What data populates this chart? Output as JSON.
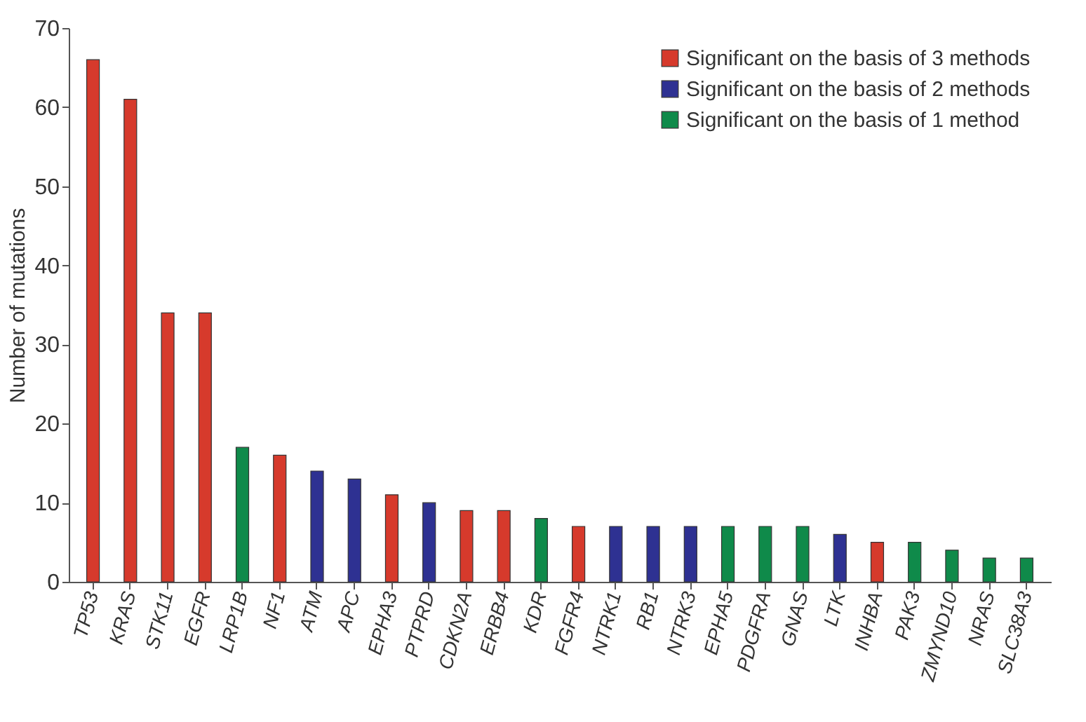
{
  "chart_data": {
    "type": "bar",
    "ylabel": "Number of mutations",
    "categories": [
      "TP53",
      "KRAS",
      "STK11",
      "EGFR",
      "LRP1B",
      "NF1",
      "ATM",
      "APC",
      "EPHA3",
      "PTPRD",
      "CDKN2A",
      "ERBB4",
      "KDR",
      "FGFR4",
      "NTRK1",
      "RB1",
      "NTRK3",
      "EPHA5",
      "PDGFRA",
      "GNAS",
      "LTK",
      "INHBA",
      "PAK3",
      "ZMYND10",
      "NRAS",
      "SLC38A3"
    ],
    "series": [
      {
        "name": "Significant on the basis of 3 methods",
        "color": "#d63a2c",
        "values": [
          66,
          61,
          34,
          34,
          null,
          16,
          null,
          null,
          11,
          null,
          9,
          9,
          null,
          7,
          null,
          null,
          null,
          null,
          null,
          null,
          null,
          5,
          null,
          null,
          null,
          null
        ]
      },
      {
        "name": "Significant on the basis of 2 methods",
        "color": "#2e3192",
        "values": [
          null,
          null,
          null,
          null,
          null,
          null,
          14,
          13,
          null,
          10,
          null,
          null,
          null,
          null,
          7,
          7,
          7,
          null,
          null,
          null,
          6,
          null,
          null,
          null,
          null,
          null
        ]
      },
      {
        "name": "Significant on the basis of 1 method",
        "color": "#0f8a4a",
        "values": [
          null,
          null,
          null,
          null,
          17,
          null,
          null,
          null,
          null,
          null,
          null,
          null,
          8,
          null,
          null,
          null,
          null,
          7,
          7,
          7,
          null,
          null,
          5,
          4,
          3,
          3
        ]
      }
    ],
    "ylim": [
      0,
      70
    ],
    "yticks": [
      0,
      10,
      20,
      30,
      40,
      50,
      60,
      70
    ],
    "grid": false,
    "legend": "top right"
  }
}
